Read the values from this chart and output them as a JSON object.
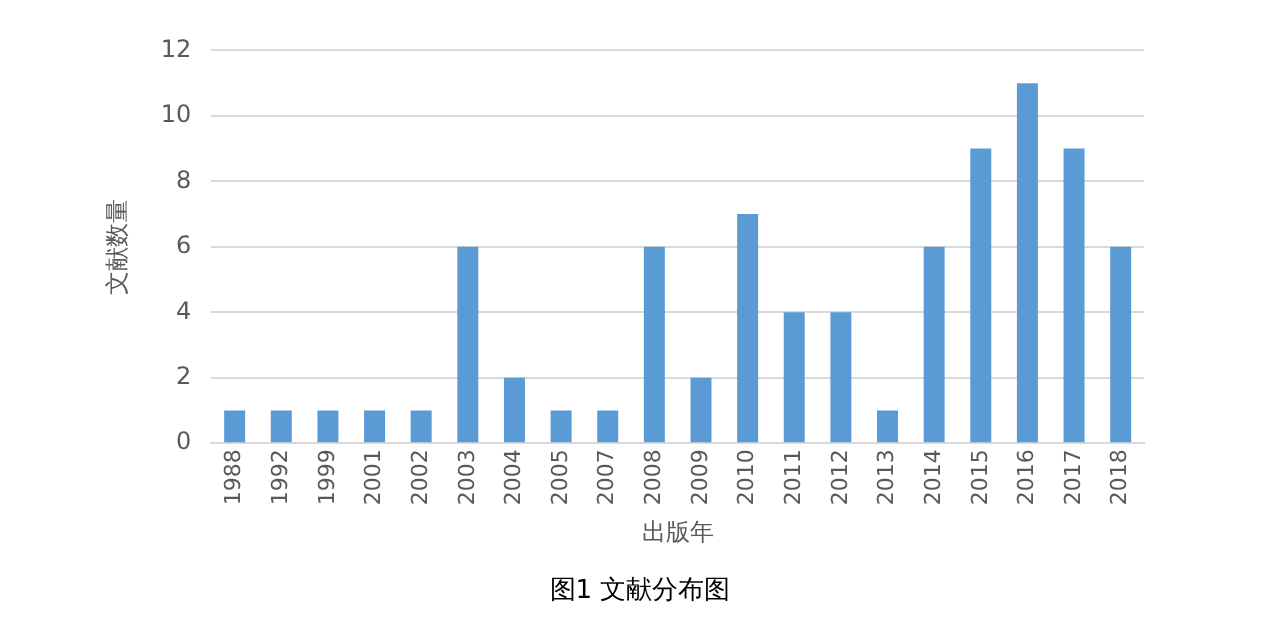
{
  "chart_data": {
    "type": "bar",
    "title": "图1 文献分布图",
    "xlabel": "出版年",
    "ylabel": "文献数量",
    "categories": [
      "1988",
      "1992",
      "1999",
      "2001",
      "2002",
      "2003",
      "2004",
      "2005",
      "2007",
      "2008",
      "2009",
      "2010",
      "2011",
      "2012",
      "2013",
      "2014",
      "2015",
      "2016",
      "2017",
      "2018"
    ],
    "values": [
      1,
      1,
      1,
      1,
      1,
      6,
      2,
      1,
      1,
      6,
      2,
      7,
      4,
      4,
      1,
      6,
      9,
      11,
      9,
      6
    ],
    "color": "#5b9bd5",
    "ylim": [
      0,
      12
    ],
    "yticks": [
      0,
      2,
      4,
      6,
      8,
      10,
      12
    ],
    "grid": "y",
    "legend": false
  }
}
